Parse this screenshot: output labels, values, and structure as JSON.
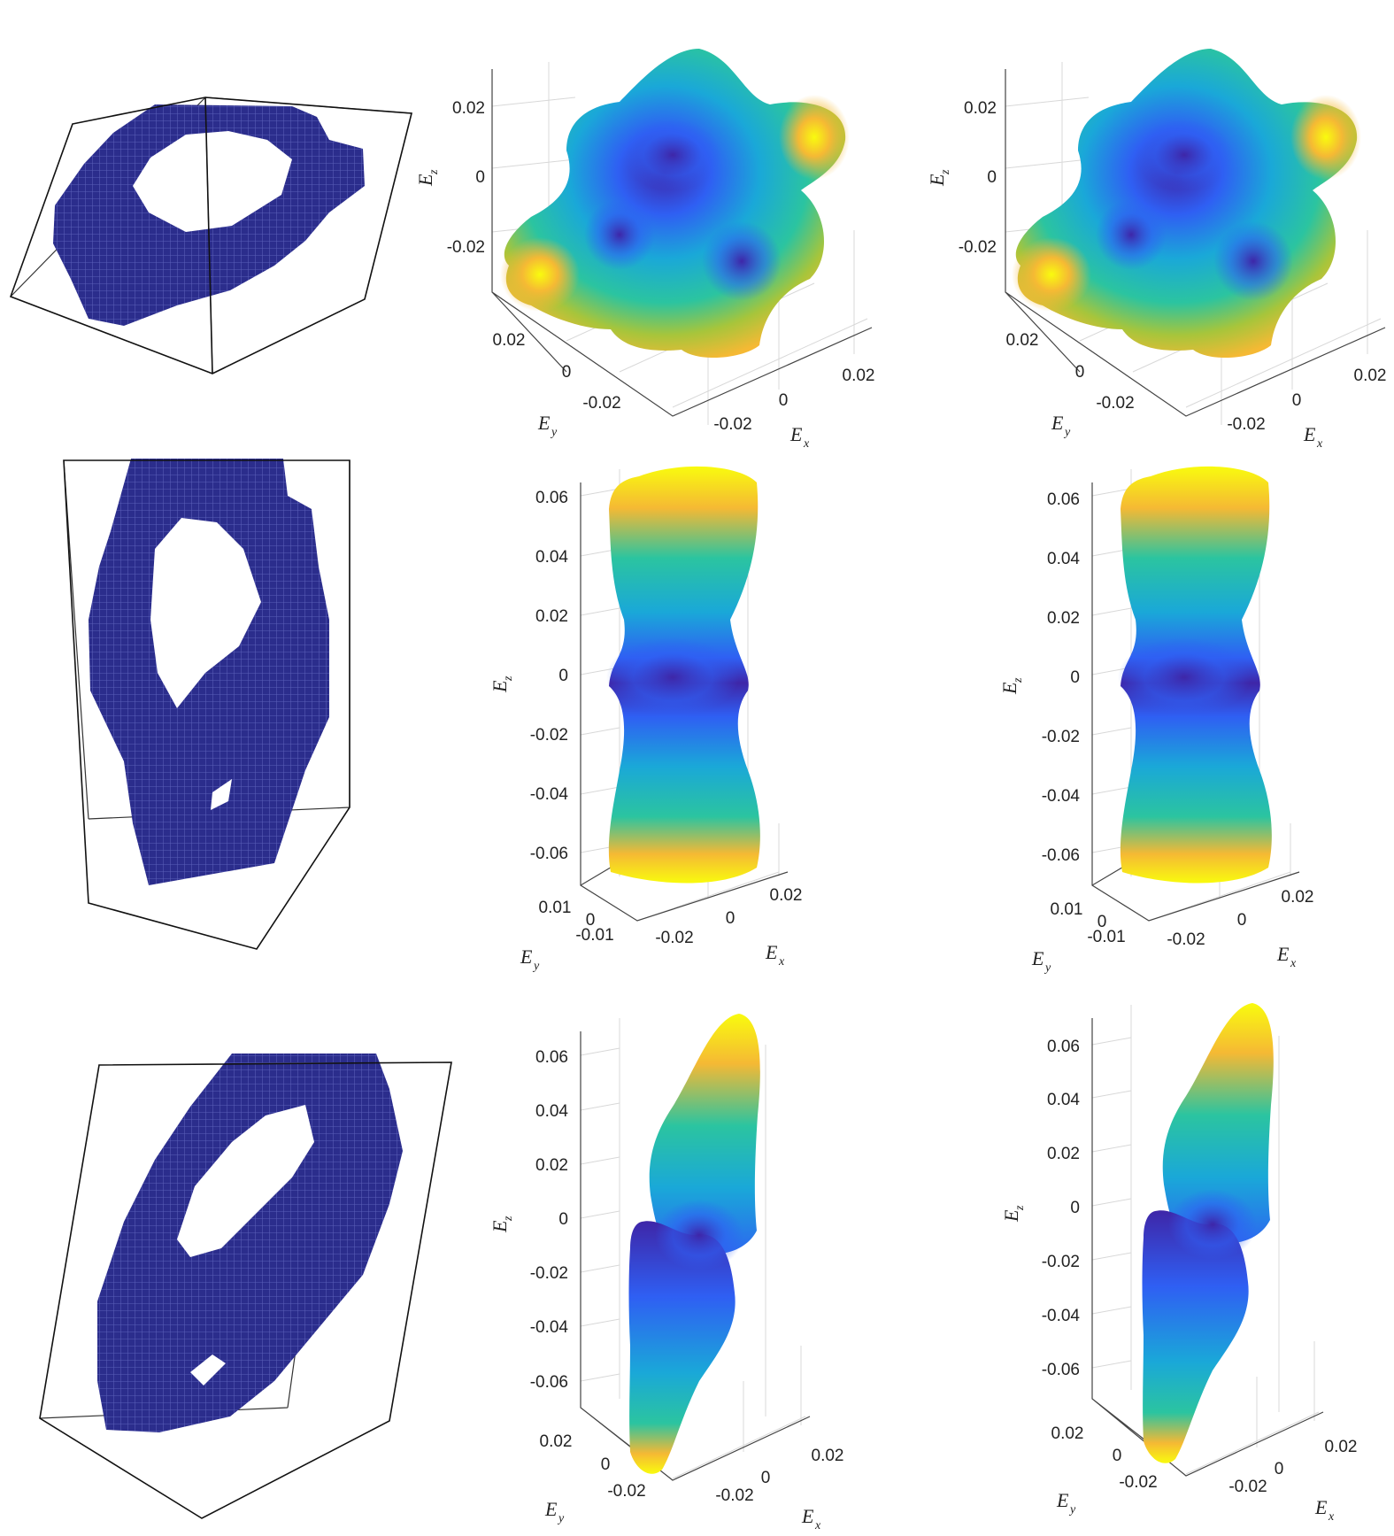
{
  "figure": {
    "rows": [
      {
        "row": "1",
        "structure_icon": "voxel-lattice-structure-1",
        "panels": [
          {
            "z_axis_label": "E",
            "z_axis_sub": "z",
            "y_axis_label": "E",
            "y_axis_sub": "y",
            "x_axis_label": "E",
            "x_axis_sub": "x",
            "z_ticks": [
              "0.02",
              "0",
              "-0.02"
            ],
            "y_ticks": [
              "0.02",
              "0",
              "-0.02"
            ],
            "x_ticks": [
              "-0.02",
              "0",
              "0.02"
            ]
          },
          {
            "z_axis_label": "E",
            "z_axis_sub": "z",
            "y_axis_label": "E",
            "y_axis_sub": "y",
            "x_axis_label": "E",
            "x_axis_sub": "x",
            "z_ticks": [
              "0.02",
              "0",
              "-0.02"
            ],
            "y_ticks": [
              "0.02",
              "0",
              "-0.02"
            ],
            "x_ticks": [
              "-0.02",
              "0",
              "0.02"
            ]
          }
        ]
      },
      {
        "row": "2",
        "structure_icon": "voxel-lattice-structure-2",
        "panels": [
          {
            "z_axis_label": "E",
            "z_axis_sub": "z",
            "y_axis_label": "E",
            "y_axis_sub": "y",
            "x_axis_label": "E",
            "x_axis_sub": "x",
            "z_ticks": [
              "0.06",
              "0.04",
              "0.02",
              "0",
              "-0.02",
              "-0.04",
              "-0.06"
            ],
            "y_ticks": [
              "0.01",
              "0",
              "-0.01"
            ],
            "x_ticks": [
              "-0.02",
              "0",
              "0.02"
            ]
          },
          {
            "z_axis_label": "E",
            "z_axis_sub": "z",
            "y_axis_label": "E",
            "y_axis_sub": "y",
            "x_axis_label": "E",
            "x_axis_sub": "x",
            "z_ticks": [
              "0.06",
              "0.04",
              "0.02",
              "0",
              "-0.02",
              "-0.04",
              "-0.06"
            ],
            "y_ticks": [
              "0.01",
              "0",
              "-0.01"
            ],
            "x_ticks": [
              "-0.02",
              "0",
              "0.02"
            ]
          }
        ]
      },
      {
        "row": "3",
        "structure_icon": "voxel-lattice-structure-3",
        "panels": [
          {
            "z_axis_label": "E",
            "z_axis_sub": "z",
            "y_axis_label": "E",
            "y_axis_sub": "y",
            "x_axis_label": "E",
            "x_axis_sub": "x",
            "z_ticks": [
              "0.06",
              "0.04",
              "0.02",
              "0",
              "-0.02",
              "-0.04",
              "-0.06"
            ],
            "y_ticks": [
              "0.02",
              "0",
              "-0.02"
            ],
            "x_ticks": [
              "-0.02",
              "0",
              "0.02"
            ]
          },
          {
            "z_axis_label": "E",
            "z_axis_sub": "z",
            "y_axis_label": "E",
            "y_axis_sub": "y",
            "x_axis_label": "E",
            "x_axis_sub": "x",
            "z_ticks": [
              "0.06",
              "0.04",
              "0.02",
              "0",
              "-0.02",
              "-0.04",
              "-0.06"
            ],
            "y_ticks": [
              "0.02",
              "0",
              "-0.02"
            ],
            "x_ticks": [
              "-0.02",
              "0",
              "0.02"
            ]
          }
        ]
      }
    ],
    "colormap": [
      "#3e26a8",
      "#2f5ff3",
      "#1aa8d8",
      "#2bc4a0",
      "#a7c53b",
      "#f5b934",
      "#f9fb0e"
    ],
    "voxel_color": "#2b2d8c"
  }
}
